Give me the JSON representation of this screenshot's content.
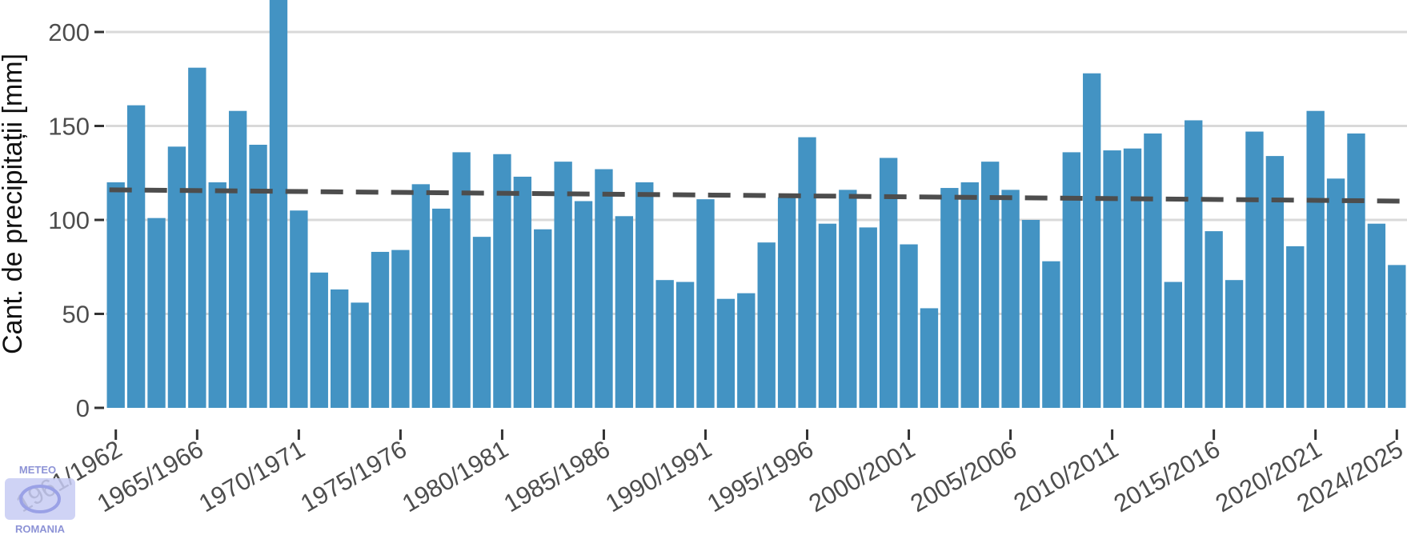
{
  "chart_data": {
    "type": "bar",
    "ylabel": "Cant. de precipitații [mm]",
    "xlabel": "",
    "ylim": [
      0,
      210
    ],
    "yticks": [
      0,
      50,
      100,
      150,
      200
    ],
    "grid": true,
    "bar_color": "#4393c3",
    "trend_color": "#4d4d4d",
    "categories": [
      "1961/1962",
      "1962/1963",
      "1963/1964",
      "1964/1965",
      "1965/1966",
      "1966/1967",
      "1967/1968",
      "1968/1969",
      "1969/1970",
      "1970/1971",
      "1971/1972",
      "1972/1973",
      "1973/1974",
      "1974/1975",
      "1975/1976",
      "1976/1977",
      "1977/1978",
      "1978/1979",
      "1979/1980",
      "1980/1981",
      "1981/1982",
      "1982/1983",
      "1983/1984",
      "1984/1985",
      "1985/1986",
      "1986/1987",
      "1987/1988",
      "1988/1989",
      "1989/1990",
      "1990/1991",
      "1991/1992",
      "1992/1993",
      "1993/1994",
      "1994/1995",
      "1995/1996",
      "1996/1997",
      "1997/1998",
      "1998/1999",
      "1999/2000",
      "2000/2001",
      "2001/2002",
      "2002/2003",
      "2003/2004",
      "2004/2005",
      "2005/2006",
      "2006/2007",
      "2007/2008",
      "2008/2009",
      "2009/2010",
      "2010/2011",
      "2011/2012",
      "2012/2013",
      "2013/2014",
      "2014/2015",
      "2015/2016",
      "2016/2017",
      "2017/2018",
      "2018/2019",
      "2019/2020",
      "2020/2021",
      "2021/2022",
      "2022/2023",
      "2023/2024",
      "2024/2025"
    ],
    "values": [
      120,
      161,
      101,
      139,
      181,
      120,
      158,
      140,
      218,
      105,
      72,
      63,
      56,
      83,
      84,
      119,
      106,
      136,
      91,
      135,
      123,
      95,
      131,
      110,
      127,
      102,
      120,
      68,
      67,
      111,
      58,
      61,
      88,
      112,
      144,
      98,
      116,
      96,
      133,
      87,
      53,
      117,
      120,
      131,
      116,
      100,
      78,
      136,
      178,
      137,
      138,
      146,
      67,
      153,
      94,
      68,
      147,
      134,
      86,
      158,
      122,
      146,
      98,
      76
    ],
    "xtick_labels": [
      "1961/1962",
      "1965/1966",
      "1970/1971",
      "1975/1976",
      "1980/1981",
      "1985/1986",
      "1990/1991",
      "1995/1996",
      "2000/2001",
      "2005/2006",
      "2010/2011",
      "2015/2016",
      "2020/2021",
      "2024/2025"
    ],
    "trend": {
      "start": 116,
      "end": 110,
      "style": "dashed"
    }
  },
  "logo": {
    "top_text": "METEO",
    "bottom_text": "ROMANIA"
  }
}
